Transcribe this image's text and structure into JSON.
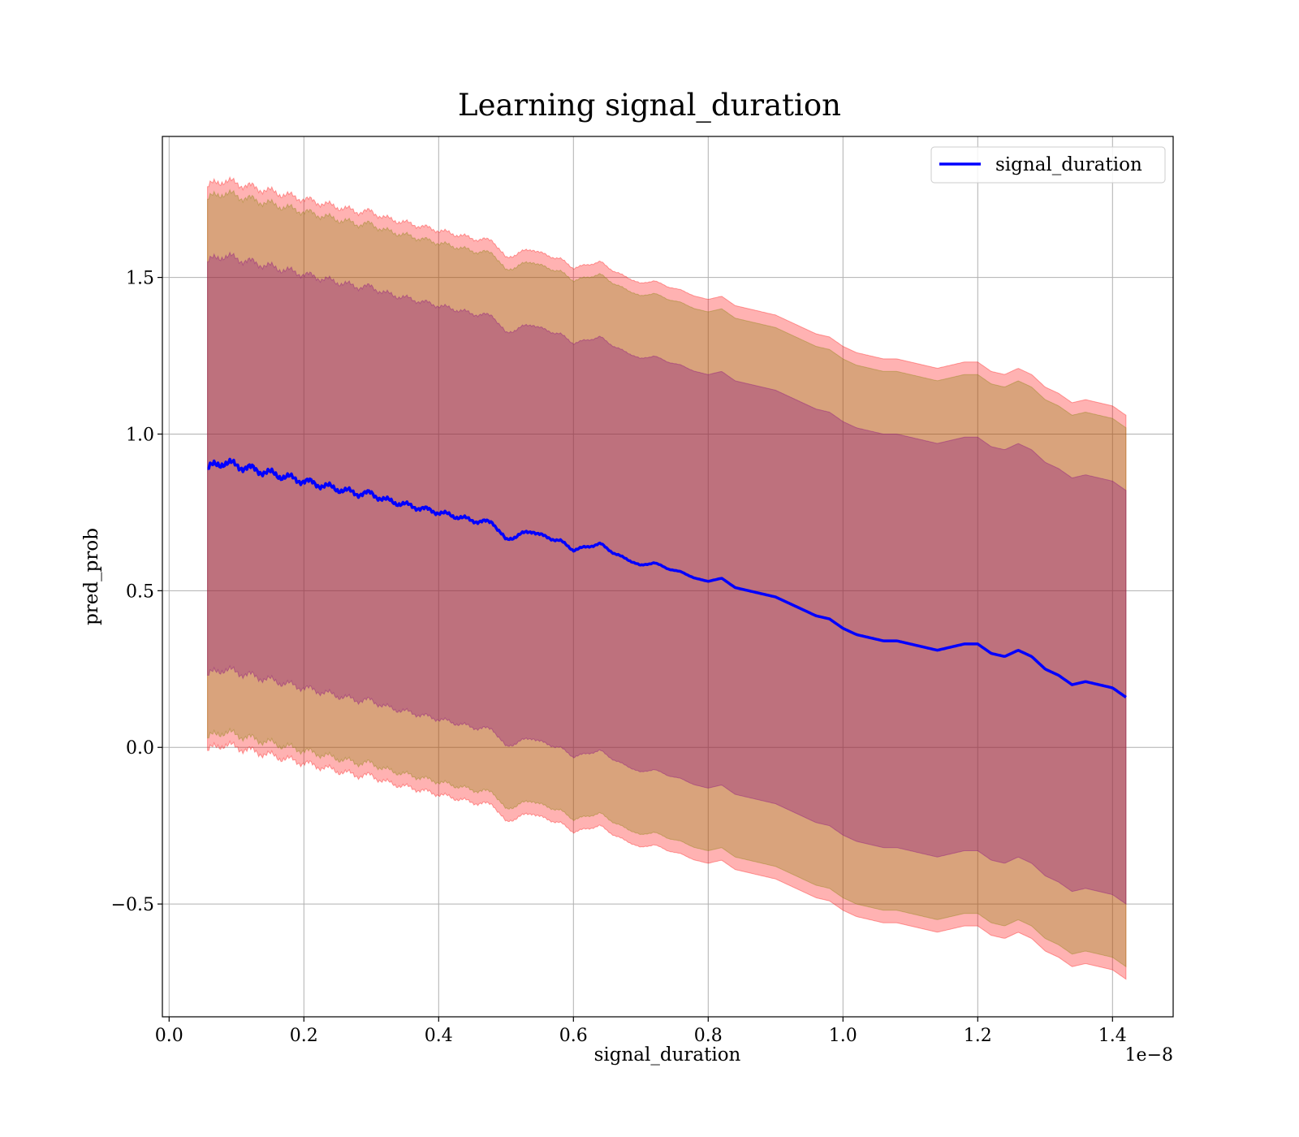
{
  "chart_data": {
    "type": "line",
    "title": "Learning signal_duration",
    "xlabel": "signal_duration",
    "ylabel": "pred_prob",
    "x_offset_label": "1e−8",
    "xlim": [
      -0.01,
      1.49
    ],
    "ylim": [
      -0.86,
      1.95
    ],
    "grid": true,
    "legend_position": "top-right",
    "x_ticks": [
      0.0,
      0.2,
      0.4,
      0.6,
      0.8,
      1.0,
      1.2,
      1.4
    ],
    "x_tick_labels": [
      "0.0",
      "0.2",
      "0.4",
      "0.6",
      "0.8",
      "1.0",
      "1.2",
      "1.4"
    ],
    "y_ticks": [
      -0.5,
      0.0,
      0.5,
      1.0,
      1.5
    ],
    "y_tick_labels": [
      "−0.5",
      "0.0",
      "0.5",
      "1.0",
      "1.5"
    ],
    "x": [
      0.057,
      0.08,
      0.1,
      0.12,
      0.14,
      0.16,
      0.18,
      0.2,
      0.22,
      0.24,
      0.26,
      0.28,
      0.3,
      0.32,
      0.34,
      0.36,
      0.38,
      0.4,
      0.42,
      0.44,
      0.46,
      0.48,
      0.5,
      0.52,
      0.54,
      0.56,
      0.58,
      0.6,
      0.62,
      0.64,
      0.66,
      0.68,
      0.7,
      0.72,
      0.74,
      0.76,
      0.78,
      0.8,
      0.82,
      0.84,
      0.86,
      0.88,
      0.9,
      0.92,
      0.94,
      0.96,
      0.98,
      1.0,
      1.02,
      1.04,
      1.06,
      1.08,
      1.1,
      1.12,
      1.14,
      1.16,
      1.18,
      1.2,
      1.22,
      1.24,
      1.26,
      1.28,
      1.3,
      1.32,
      1.34,
      1.36,
      1.38,
      1.4,
      1.42
    ],
    "series": [
      {
        "name": "signal_duration",
        "color": "#0000ff",
        "values": [
          0.89,
          0.91,
          0.9,
          0.89,
          0.88,
          0.87,
          0.86,
          0.85,
          0.84,
          0.83,
          0.82,
          0.81,
          0.81,
          0.79,
          0.78,
          0.77,
          0.76,
          0.75,
          0.74,
          0.73,
          0.72,
          0.72,
          0.66,
          0.68,
          0.69,
          0.67,
          0.66,
          0.63,
          0.64,
          0.65,
          0.62,
          0.6,
          0.58,
          0.59,
          0.57,
          0.56,
          0.54,
          0.53,
          0.54,
          0.51,
          0.5,
          0.49,
          0.48,
          0.46,
          0.44,
          0.42,
          0.41,
          0.38,
          0.36,
          0.35,
          0.34,
          0.34,
          0.33,
          0.32,
          0.31,
          0.32,
          0.33,
          0.33,
          0.3,
          0.29,
          0.31,
          0.29,
          0.25,
          0.23,
          0.2,
          0.21,
          0.2,
          0.19,
          0.16
        ]
      }
    ],
    "bands": [
      {
        "color": "#ff0000",
        "opacity": 0.3,
        "width": 0.9
      },
      {
        "color": "#808000",
        "opacity": 0.3,
        "width": 0.86
      },
      {
        "color": "#800080",
        "opacity": 0.3,
        "width": 0.66
      }
    ]
  }
}
